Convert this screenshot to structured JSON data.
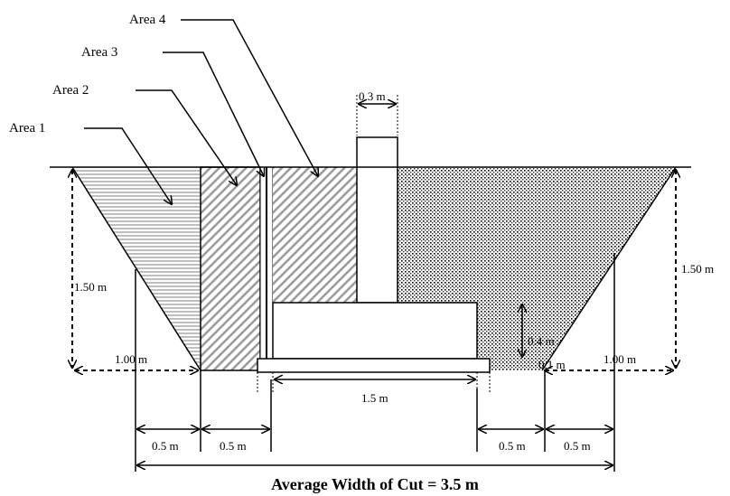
{
  "areas": [
    "Area 1",
    "Area 2",
    "Area 3",
    "Area 4"
  ],
  "dimensions": {
    "column_width": "0.3 m",
    "depth_left": "1.50 m",
    "depth_right": "1.50 m",
    "slope_left": "1.00 m",
    "slope_right": "1.00 m",
    "footing_height": "0.4 m",
    "slab_thickness": "0.1 m",
    "footing_width": "1.5 m",
    "offsets": [
      "0.5 m",
      "0.5 m",
      "0.5 m",
      "0.5 m"
    ]
  },
  "caption": "Average Width of Cut = 3.5 m"
}
